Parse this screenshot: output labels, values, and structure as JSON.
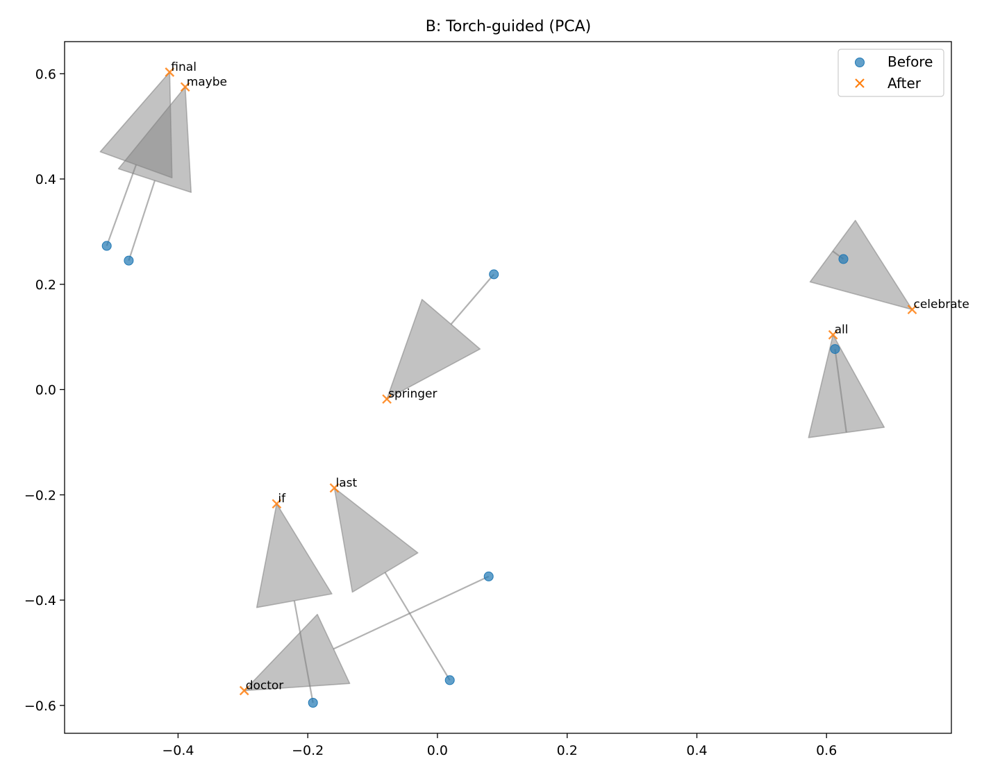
{
  "chart_data": {
    "type": "scatter",
    "title": "B: Torch-guided (PCA)",
    "xlabel": "",
    "ylabel": "",
    "xlim": [
      -0.575,
      0.7925
    ],
    "ylim": [
      -0.653,
      0.661
    ],
    "xticks": [
      -0.4,
      -0.2,
      0.0,
      0.2,
      0.4,
      0.6
    ],
    "xtick_labels": [
      "−0.4",
      "−0.2",
      "0.0",
      "0.2",
      "0.4",
      "0.6"
    ],
    "yticks": [
      -0.6,
      -0.4,
      -0.2,
      0.0,
      0.2,
      0.4,
      0.6
    ],
    "ytick_labels": [
      "−0.6",
      "−0.4",
      "−0.2",
      "0.0",
      "0.2",
      "0.4",
      "0.6"
    ],
    "grid": false,
    "legend_position": "top-right",
    "colors": {
      "before": "#1f77b4",
      "after": "#ff7f0e",
      "arrow": "#7f7f7f"
    },
    "series": [
      {
        "name": "Before",
        "marker": "circle"
      },
      {
        "name": "After",
        "marker": "x"
      }
    ],
    "points": [
      {
        "word": "final",
        "before": [
          -0.51,
          0.273
        ],
        "after": [
          -0.413,
          0.603
        ]
      },
      {
        "word": "maybe",
        "before": [
          -0.476,
          0.245
        ],
        "after": [
          -0.389,
          0.575
        ]
      },
      {
        "word": "celebrate",
        "before": [
          0.626,
          0.248
        ],
        "after": [
          0.732,
          0.152
        ]
      },
      {
        "word": "all",
        "before": [
          0.613,
          0.077
        ],
        "after": [
          0.61,
          0.104
        ]
      },
      {
        "word": "springer",
        "before": [
          0.087,
          0.219
        ],
        "after": [
          -0.078,
          -0.018
        ]
      },
      {
        "word": "if",
        "before": [
          -0.192,
          -0.595
        ],
        "after": [
          -0.248,
          -0.217
        ]
      },
      {
        "word": "last",
        "before": [
          0.019,
          -0.552
        ],
        "after": [
          -0.159,
          -0.187
        ]
      },
      {
        "word": "doctor",
        "before": [
          0.079,
          -0.355
        ],
        "after": [
          -0.298,
          -0.572
        ]
      }
    ]
  }
}
